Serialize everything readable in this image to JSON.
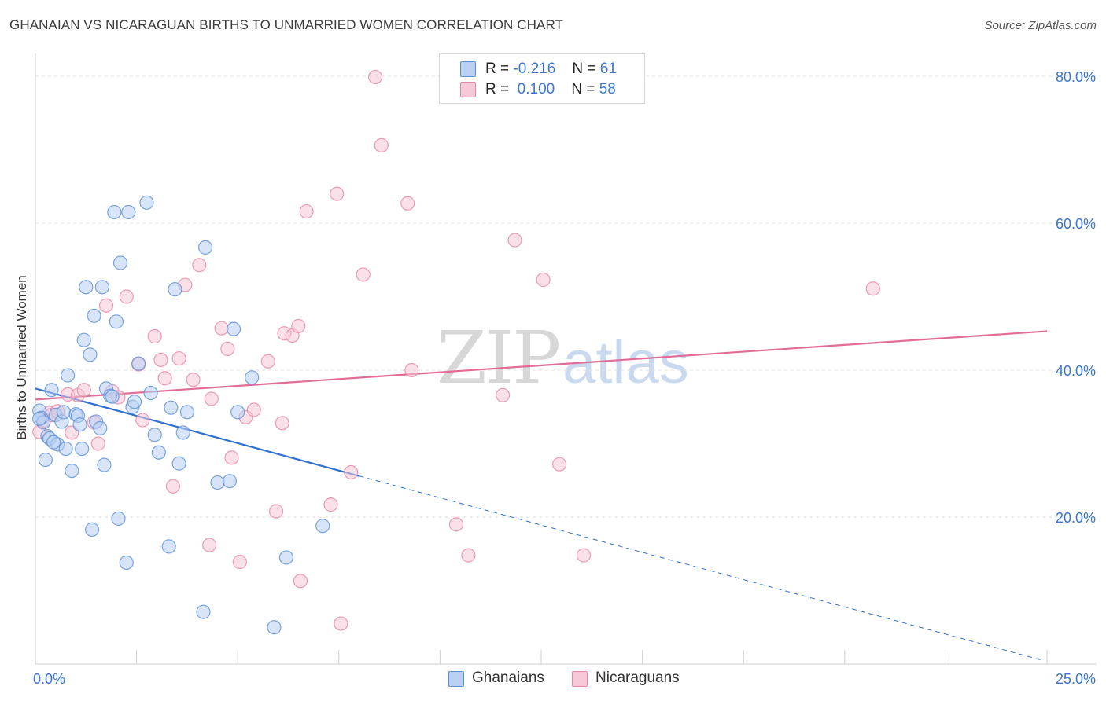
{
  "header": {
    "title": "GHANAIAN VS NICARAGUAN BIRTHS TO UNMARRIED WOMEN CORRELATION CHART",
    "source": "Source: ZipAtlas.com"
  },
  "colors": {
    "blue": "#5b8fd9",
    "blue_fill": "#b8d0f2",
    "pink": "#e884a6",
    "pink_fill": "#f6c7d6",
    "blue_line": "#2f6fce",
    "pink_line": "#e06d97",
    "tick_label": "#3a76d0"
  },
  "legend_top": {
    "rows": [
      {
        "r_label": "R =",
        "r_value": "-0.216",
        "n_label": "N =",
        "n_value": "61"
      },
      {
        "r_label": "R =",
        "r_value": "0.100",
        "n_label": "N =",
        "n_value": "58"
      }
    ]
  },
  "legend_bottom": {
    "items": [
      {
        "label": "Ghanaians"
      },
      {
        "label": "Nicaraguans"
      }
    ]
  },
  "watermark": {
    "zip": "ZIP",
    "atlas": "atlas"
  },
  "chart_data": {
    "type": "scatter",
    "title": "GHANAIAN VS NICARAGUAN BIRTHS TO UNMARRIED WOMEN CORRELATION CHART",
    "xlabel": "",
    "ylabel": "Births to Unmarried Women",
    "xlim": [
      0,
      25
    ],
    "ylim": [
      0,
      80
    ],
    "x_tick_labels": [
      "0.0%",
      "25.0%"
    ],
    "y_ticks": [
      20,
      40,
      60,
      80
    ],
    "y_tick_labels": [
      "20.0%",
      "40.0%",
      "60.0%",
      "80.0%"
    ],
    "grid": true,
    "series": [
      {
        "name": "Ghanaians",
        "r": -0.216,
        "n": 61,
        "trend": {
          "x0": 0,
          "y0": 37.5,
          "x1": 8.0,
          "y1": 25.6,
          "dash_to_x": 24.9,
          "dash_to_y": 0.5
        },
        "points": [
          [
            0.1,
            34.5
          ],
          [
            0.15,
            33.5
          ],
          [
            0.2,
            32.9
          ],
          [
            0.25,
            27.8
          ],
          [
            0.3,
            31.0
          ],
          [
            0.35,
            30.7
          ],
          [
            0.4,
            37.3
          ],
          [
            0.5,
            33.9
          ],
          [
            0.55,
            29.9
          ],
          [
            0.65,
            33.0
          ],
          [
            0.7,
            34.3
          ],
          [
            0.75,
            29.3
          ],
          [
            0.8,
            39.3
          ],
          [
            0.9,
            26.3
          ],
          [
            1.0,
            34.0
          ],
          [
            1.05,
            33.8
          ],
          [
            1.1,
            32.6
          ],
          [
            1.15,
            29.3
          ],
          [
            1.2,
            44.1
          ],
          [
            1.25,
            51.3
          ],
          [
            1.35,
            42.1
          ],
          [
            1.4,
            18.3
          ],
          [
            1.45,
            47.4
          ],
          [
            1.5,
            33.0
          ],
          [
            1.6,
            32.1
          ],
          [
            1.65,
            51.3
          ],
          [
            1.7,
            27.1
          ],
          [
            1.75,
            37.5
          ],
          [
            1.85,
            36.5
          ],
          [
            1.9,
            36.4
          ],
          [
            1.95,
            61.5
          ],
          [
            2.0,
            46.6
          ],
          [
            2.05,
            19.8
          ],
          [
            2.1,
            54.6
          ],
          [
            2.25,
            13.8
          ],
          [
            2.3,
            61.5
          ],
          [
            2.4,
            35.0
          ],
          [
            2.45,
            35.7
          ],
          [
            2.55,
            40.9
          ],
          [
            2.75,
            62.8
          ],
          [
            2.85,
            36.9
          ],
          [
            2.95,
            31.2
          ],
          [
            3.05,
            28.8
          ],
          [
            3.3,
            16.0
          ],
          [
            3.35,
            34.9
          ],
          [
            3.45,
            51.0
          ],
          [
            3.55,
            27.3
          ],
          [
            3.65,
            31.5
          ],
          [
            3.75,
            34.3
          ],
          [
            4.15,
            7.1
          ],
          [
            4.2,
            56.7
          ],
          [
            4.5,
            24.7
          ],
          [
            4.8,
            24.9
          ],
          [
            4.9,
            45.6
          ],
          [
            5.0,
            34.3
          ],
          [
            5.35,
            39.0
          ],
          [
            5.9,
            5.0
          ],
          [
            6.2,
            14.5
          ],
          [
            7.1,
            18.8
          ],
          [
            0.1,
            33.4
          ],
          [
            0.45,
            30.2
          ]
        ]
      },
      {
        "name": "Nicaraguans",
        "r": 0.1,
        "n": 58,
        "trend": {
          "x0": 0,
          "y0": 36.0,
          "x1": 25.0,
          "y1": 45.3
        },
        "points": [
          [
            0.1,
            31.6
          ],
          [
            0.2,
            33.1
          ],
          [
            0.35,
            34.2
          ],
          [
            0.4,
            33.9
          ],
          [
            0.55,
            34.4
          ],
          [
            0.8,
            36.7
          ],
          [
            0.9,
            31.5
          ],
          [
            1.05,
            36.6
          ],
          [
            1.2,
            37.3
          ],
          [
            1.45,
            32.9
          ],
          [
            1.55,
            30.0
          ],
          [
            1.75,
            48.8
          ],
          [
            1.9,
            37.1
          ],
          [
            2.05,
            36.3
          ],
          [
            2.25,
            50.0
          ],
          [
            2.55,
            40.8
          ],
          [
            2.65,
            33.2
          ],
          [
            2.95,
            44.6
          ],
          [
            3.1,
            41.4
          ],
          [
            3.2,
            38.9
          ],
          [
            3.4,
            24.2
          ],
          [
            3.55,
            41.6
          ],
          [
            3.7,
            51.6
          ],
          [
            3.9,
            38.7
          ],
          [
            4.05,
            54.3
          ],
          [
            4.3,
            16.2
          ],
          [
            4.35,
            36.1
          ],
          [
            4.6,
            45.7
          ],
          [
            4.75,
            42.9
          ],
          [
            4.85,
            28.1
          ],
          [
            5.2,
            33.6
          ],
          [
            5.4,
            34.6
          ],
          [
            5.75,
            41.2
          ],
          [
            5.95,
            20.8
          ],
          [
            6.1,
            32.8
          ],
          [
            6.15,
            45.0
          ],
          [
            6.35,
            44.7
          ],
          [
            6.5,
            46.0
          ],
          [
            6.55,
            11.3
          ],
          [
            6.7,
            61.6
          ],
          [
            7.3,
            21.7
          ],
          [
            7.45,
            64.0
          ],
          [
            7.55,
            5.5
          ],
          [
            7.8,
            26.1
          ],
          [
            8.1,
            53.0
          ],
          [
            8.4,
            79.9
          ],
          [
            8.55,
            70.6
          ],
          [
            9.2,
            62.7
          ],
          [
            9.3,
            40.0
          ],
          [
            10.4,
            19.0
          ],
          [
            10.7,
            14.8
          ],
          [
            11.55,
            36.6
          ],
          [
            11.85,
            57.7
          ],
          [
            12.55,
            52.3
          ],
          [
            12.95,
            27.2
          ],
          [
            13.55,
            14.8
          ],
          [
            20.7,
            51.1
          ],
          [
            5.05,
            13.9
          ]
        ]
      }
    ]
  }
}
